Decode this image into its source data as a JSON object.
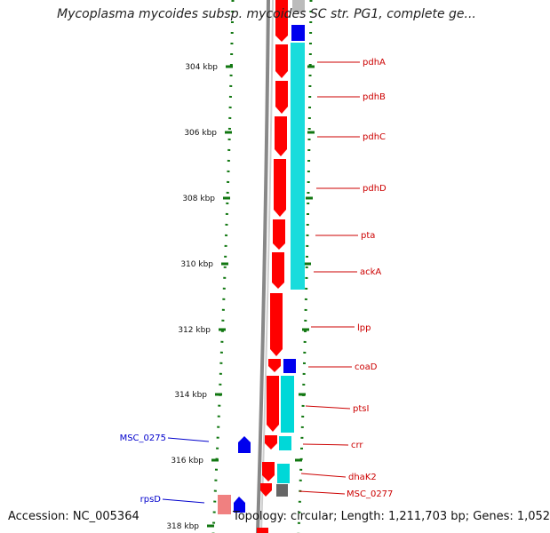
{
  "title": "Mycoplasma mycoides subsp. mycoides SC str. PG1, complete ge...",
  "footer": {
    "accession": "Accession: NC_005364",
    "info": "Topology: circular; Length: 1,211,703 bp; Genes: 1,052"
  },
  "colors": {
    "cds": "#ff0000",
    "rna": "#0000ee",
    "blast_hit": "#00d8d8",
    "ruler": "#117711",
    "backbone": "#888888",
    "gene_label": "#cc0000",
    "rna_label": "#0000cc"
  },
  "ruler": {
    "unit": "kbp",
    "tick_labels": [
      "304 kbp",
      "306 kbp",
      "308 kbp",
      "310 kbp",
      "312 kbp",
      "314 kbp",
      "316 kbp",
      "318 kbp"
    ]
  },
  "features": [
    {
      "name": "pdhA",
      "type": "CDS",
      "strand": "+"
    },
    {
      "name": "pdhB",
      "type": "CDS",
      "strand": "+"
    },
    {
      "name": "pdhC",
      "type": "CDS",
      "strand": "+"
    },
    {
      "name": "pdhD",
      "type": "CDS",
      "strand": "+"
    },
    {
      "name": "pta",
      "type": "CDS",
      "strand": "+"
    },
    {
      "name": "ackA",
      "type": "CDS",
      "strand": "+"
    },
    {
      "name": "lpp",
      "type": "CDS",
      "strand": "+"
    },
    {
      "name": "coaD",
      "type": "CDS",
      "strand": "+"
    },
    {
      "name": "ptsI",
      "type": "CDS",
      "strand": "+"
    },
    {
      "name": "crr",
      "type": "CDS",
      "strand": "+"
    },
    {
      "name": "dhaK2",
      "type": "CDS",
      "strand": "+"
    },
    {
      "name": "MSC_0277",
      "type": "CDS",
      "strand": "+"
    },
    {
      "name": "MSC_0275",
      "type": "RNA",
      "strand": "-"
    },
    {
      "name": "rpsD",
      "type": "CDS",
      "strand": "-"
    }
  ]
}
